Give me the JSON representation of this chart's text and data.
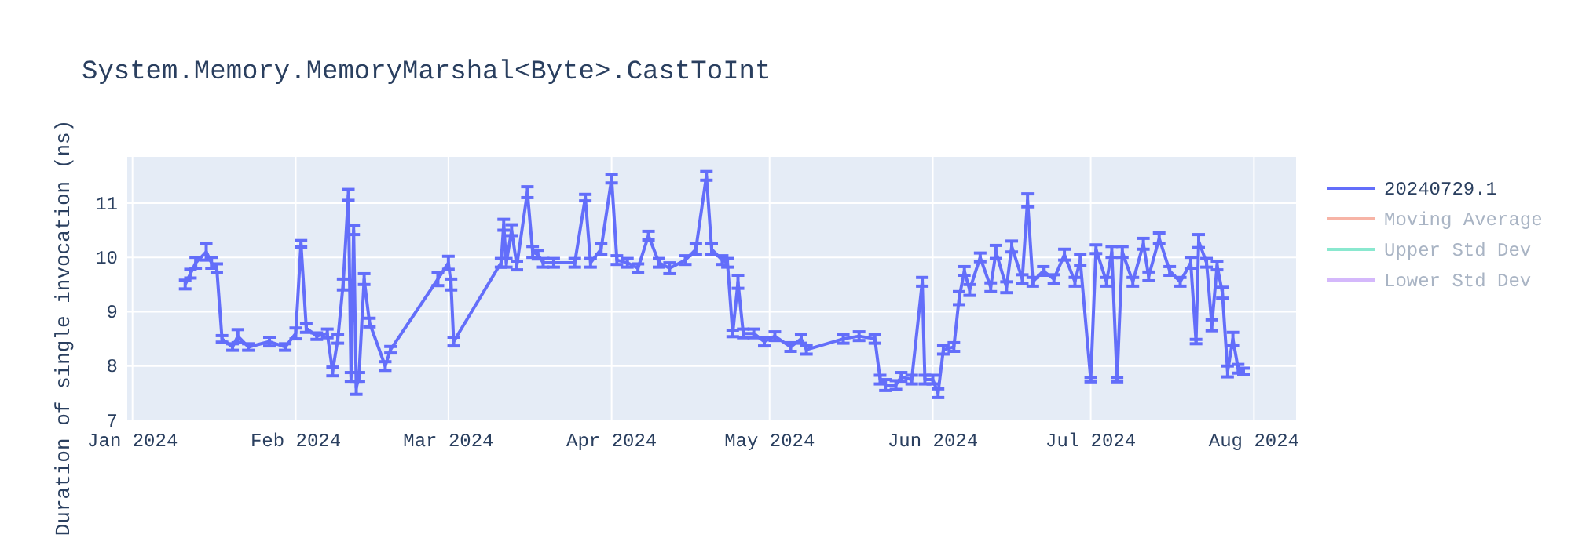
{
  "chart_data": {
    "type": "line",
    "title": "System.Memory.MemoryMarshal<Byte>.CastToInt",
    "ylabel": "Duration of single invocation (ns)",
    "x": [
      "2024-01-11",
      "2024-01-12",
      "2024-01-13",
      "2024-01-15",
      "2024-01-16",
      "2024-01-17",
      "2024-01-18",
      "2024-01-20",
      "2024-01-21",
      "2024-01-23",
      "2024-01-27",
      "2024-01-30",
      "2024-02-01",
      "2024-02-02",
      "2024-02-03",
      "2024-02-05",
      "2024-02-07",
      "2024-02-08",
      "2024-02-09",
      "2024-02-10",
      "2024-02-11",
      "2024-02-11T12:00",
      "2024-02-12",
      "2024-02-12T12:00",
      "2024-02-13",
      "2024-02-14",
      "2024-02-15",
      "2024-02-18",
      "2024-02-19",
      "2024-02-28",
      "2024-03-01",
      "2024-03-01T12:00",
      "2024-03-02",
      "2024-03-11",
      "2024-03-11T12:00",
      "2024-03-12",
      "2024-03-13",
      "2024-03-14",
      "2024-03-16",
      "2024-03-17",
      "2024-03-18",
      "2024-03-19",
      "2024-03-21",
      "2024-03-25",
      "2024-03-27",
      "2024-03-28",
      "2024-03-30",
      "2024-04-01",
      "2024-04-02",
      "2024-04-04",
      "2024-04-06",
      "2024-04-08",
      "2024-04-10",
      "2024-04-12",
      "2024-04-15",
      "2024-04-17",
      "2024-04-19",
      "2024-04-20",
      "2024-04-22",
      "2024-04-23",
      "2024-04-24",
      "2024-04-25",
      "2024-04-26",
      "2024-04-28",
      "2024-04-30",
      "2024-05-02",
      "2024-05-05",
      "2024-05-07",
      "2024-05-08",
      "2024-05-15",
      "2024-05-18",
      "2024-05-21",
      "2024-05-22",
      "2024-05-23",
      "2024-05-25",
      "2024-05-26",
      "2024-05-28",
      "2024-05-30",
      "2024-05-30T12:00",
      "2024-06-01",
      "2024-06-02",
      "2024-06-03",
      "2024-06-05",
      "2024-06-06",
      "2024-06-07",
      "2024-06-08",
      "2024-06-10",
      "2024-06-12",
      "2024-06-13",
      "2024-06-15",
      "2024-06-16",
      "2024-06-18",
      "2024-06-19",
      "2024-06-20",
      "2024-06-22",
      "2024-06-24",
      "2024-06-26",
      "2024-06-28",
      "2024-06-29",
      "2024-07-01",
      "2024-07-02",
      "2024-07-04",
      "2024-07-05",
      "2024-07-06",
      "2024-07-07",
      "2024-07-09",
      "2024-07-11",
      "2024-07-12",
      "2024-07-14",
      "2024-07-16",
      "2024-07-18",
      "2024-07-20",
      "2024-07-21",
      "2024-07-21T12:00",
      "2024-07-23",
      "2024-07-24",
      "2024-07-25",
      "2024-07-26",
      "2024-07-27",
      "2024-07-28",
      "2024-07-29",
      "2024-07-30"
    ],
    "series": [
      {
        "name": "20240729.1",
        "color": "#636efa",
        "values": [
          9.5,
          9.7,
          9.9,
          10.1,
          9.9,
          9.8,
          8.5,
          8.35,
          8.55,
          8.35,
          8.45,
          8.35,
          8.6,
          10.25,
          8.7,
          8.55,
          8.6,
          7.9,
          8.5,
          9.5,
          11.15,
          7.8,
          10.5,
          7.6,
          7.8,
          9.6,
          8.8,
          8.0,
          8.3,
          9.6,
          9.9,
          9.5,
          8.45,
          9.9,
          10.6,
          9.9,
          10.5,
          9.85,
          11.2,
          10.1,
          10.05,
          9.9,
          9.9,
          9.9,
          11.1,
          9.9,
          10.15,
          11.45,
          9.95,
          9.9,
          9.8,
          10.4,
          9.9,
          9.8,
          9.95,
          10.15,
          11.5,
          10.15,
          9.95,
          9.9,
          8.6,
          9.55,
          8.6,
          8.6,
          8.45,
          8.55,
          8.35,
          8.5,
          8.3,
          8.5,
          8.55,
          8.5,
          7.75,
          7.65,
          7.65,
          7.8,
          7.75,
          9.55,
          7.75,
          7.75,
          7.5,
          8.3,
          8.35,
          9.25,
          9.75,
          9.4,
          10.0,
          9.45,
          10.1,
          9.45,
          10.2,
          9.6,
          11.05,
          9.55,
          9.75,
          9.6,
          10.05,
          9.55,
          9.95,
          7.75,
          10.15,
          9.55,
          10.1,
          7.75,
          10.1,
          9.55,
          10.25,
          9.65,
          10.35,
          9.75,
          9.55,
          9.9,
          8.45,
          10.3,
          9.9,
          8.75,
          9.85,
          9.35,
          7.9,
          8.5,
          7.95,
          7.9
        ],
        "errors": [
          0.08,
          0.08,
          0.1,
          0.15,
          0.1,
          0.08,
          0.06,
          0.06,
          0.12,
          0.06,
          0.08,
          0.06,
          0.1,
          0.06,
          0.08,
          0.06,
          0.08,
          0.08,
          0.08,
          0.1,
          0.1,
          0.08,
          0.08,
          0.12,
          0.08,
          0.1,
          0.08,
          0.08,
          0.06,
          0.12,
          0.12,
          0.1,
          0.08,
          0.08,
          0.1,
          0.08,
          0.1,
          0.08,
          0.1,
          0.1,
          0.08,
          0.08,
          0.08,
          0.08,
          0.06,
          0.08,
          0.1,
          0.08,
          0.08,
          0.08,
          0.08,
          0.08,
          0.08,
          0.1,
          0.08,
          0.1,
          0.08,
          0.1,
          0.08,
          0.08,
          0.06,
          0.12,
          0.08,
          0.08,
          0.08,
          0.08,
          0.08,
          0.08,
          0.08,
          0.08,
          0.08,
          0.08,
          0.08,
          0.1,
          0.08,
          0.08,
          0.08,
          0.08,
          0.08,
          0.08,
          0.08,
          0.08,
          0.08,
          0.12,
          0.08,
          0.1,
          0.08,
          0.08,
          0.12,
          0.1,
          0.1,
          0.08,
          0.12,
          0.08,
          0.08,
          0.08,
          0.1,
          0.08,
          0.1,
          0.04,
          0.08,
          0.08,
          0.1,
          0.04,
          0.1,
          0.08,
          0.1,
          0.08,
          0.1,
          0.08,
          0.08,
          0.1,
          0.04,
          0.12,
          0.08,
          0.1,
          0.08,
          0.1,
          0.1,
          0.12,
          0.08,
          0.06
        ]
      },
      {
        "name": "Moving Average",
        "color": "#f7b4a6",
        "values": [
          null,
          null,
          null,
          null,
          null,
          null,
          null,
          null,
          null,
          null,
          null,
          null,
          null,
          null,
          null,
          null,
          null,
          null,
          null,
          null,
          null,
          null,
          null,
          null,
          null,
          null,
          null,
          null,
          null,
          null,
          null,
          null,
          null,
          null,
          null,
          null,
          null,
          null,
          null,
          null,
          null,
          null,
          null,
          null,
          null,
          null,
          null,
          null,
          null,
          null,
          null,
          null,
          null,
          null,
          null,
          null,
          null,
          null,
          null,
          null,
          null,
          null,
          null,
          null,
          null,
          null,
          null,
          null,
          null,
          null,
          null,
          null,
          null,
          null,
          null,
          null,
          null,
          null,
          null,
          null,
          null,
          null,
          null,
          null,
          null,
          null,
          null,
          null,
          null,
          null,
          null,
          null,
          null,
          null,
          null,
          null,
          null,
          null,
          null,
          null,
          null,
          null,
          null,
          null,
          null,
          null,
          null,
          null,
          null,
          null,
          null,
          null,
          null,
          null,
          null,
          null,
          null,
          null,
          null,
          null,
          null,
          null
        ]
      },
      {
        "name": "Upper Std Dev",
        "color": "#8ae8cf",
        "values": [
          null,
          null,
          null,
          null,
          null,
          null,
          null,
          null,
          null,
          null,
          null,
          null,
          null,
          null,
          null,
          null,
          null,
          null,
          null,
          null,
          null,
          null,
          null,
          null,
          null,
          null,
          null,
          null,
          null,
          null,
          null,
          null,
          null,
          null,
          null,
          null,
          null,
          null,
          null,
          null,
          null,
          null,
          null,
          null,
          null,
          null,
          null,
          null,
          null,
          null,
          null,
          null,
          null,
          null,
          null,
          null,
          null,
          null,
          null,
          null,
          null,
          null,
          null,
          null,
          null,
          null,
          null,
          null,
          null,
          null,
          null,
          null,
          null,
          null,
          null,
          null,
          null,
          null,
          null,
          null,
          null,
          null,
          null,
          null,
          null,
          null,
          null,
          null,
          null,
          null,
          null,
          null,
          null,
          null,
          null,
          null,
          null,
          null,
          null,
          null,
          null,
          null,
          null,
          null,
          null,
          null,
          null,
          null,
          null,
          null,
          null,
          null,
          null,
          null,
          null,
          null,
          null,
          null,
          null,
          null,
          null,
          null
        ]
      },
      {
        "name": "Lower Std Dev",
        "color": "#d4b8fb",
        "values": [
          null,
          null,
          null,
          null,
          null,
          null,
          null,
          null,
          null,
          null,
          null,
          null,
          null,
          null,
          null,
          null,
          null,
          null,
          null,
          null,
          null,
          null,
          null,
          null,
          null,
          null,
          null,
          null,
          null,
          null,
          null,
          null,
          null,
          null,
          null,
          null,
          null,
          null,
          null,
          null,
          null,
          null,
          null,
          null,
          null,
          null,
          null,
          null,
          null,
          null,
          null,
          null,
          null,
          null,
          null,
          null,
          null,
          null,
          null,
          null,
          null,
          null,
          null,
          null,
          null,
          null,
          null,
          null,
          null,
          null,
          null,
          null,
          null,
          null,
          null,
          null,
          null,
          null,
          null,
          null,
          null,
          null,
          null,
          null,
          null,
          null,
          null,
          null,
          null,
          null,
          null,
          null,
          null,
          null,
          null,
          null,
          null,
          null,
          null,
          null,
          null,
          null,
          null,
          null,
          null,
          null,
          null,
          null,
          null,
          null,
          null,
          null,
          null,
          null,
          null,
          null,
          null,
          null,
          null,
          null,
          null,
          null
        ]
      }
    ],
    "xlim": [
      "2023-12-31",
      "2024-08-09"
    ],
    "xticks": [
      {
        "value": "2024-01-01",
        "label": "Jan 2024"
      },
      {
        "value": "2024-02-01",
        "label": "Feb 2024"
      },
      {
        "value": "2024-03-01",
        "label": "Mar 2024"
      },
      {
        "value": "2024-04-01",
        "label": "Apr 2024"
      },
      {
        "value": "2024-05-01",
        "label": "May 2024"
      },
      {
        "value": "2024-06-01",
        "label": "Jun 2024"
      },
      {
        "value": "2024-07-01",
        "label": "Jul 2024"
      },
      {
        "value": "2024-08-01",
        "label": "Aug 2024"
      }
    ],
    "ylim": [
      7,
      11.85
    ],
    "yticks": [
      7,
      8,
      9,
      10,
      11
    ],
    "grid": true,
    "legend": "right",
    "marker": "none",
    "line_style": "solid"
  }
}
